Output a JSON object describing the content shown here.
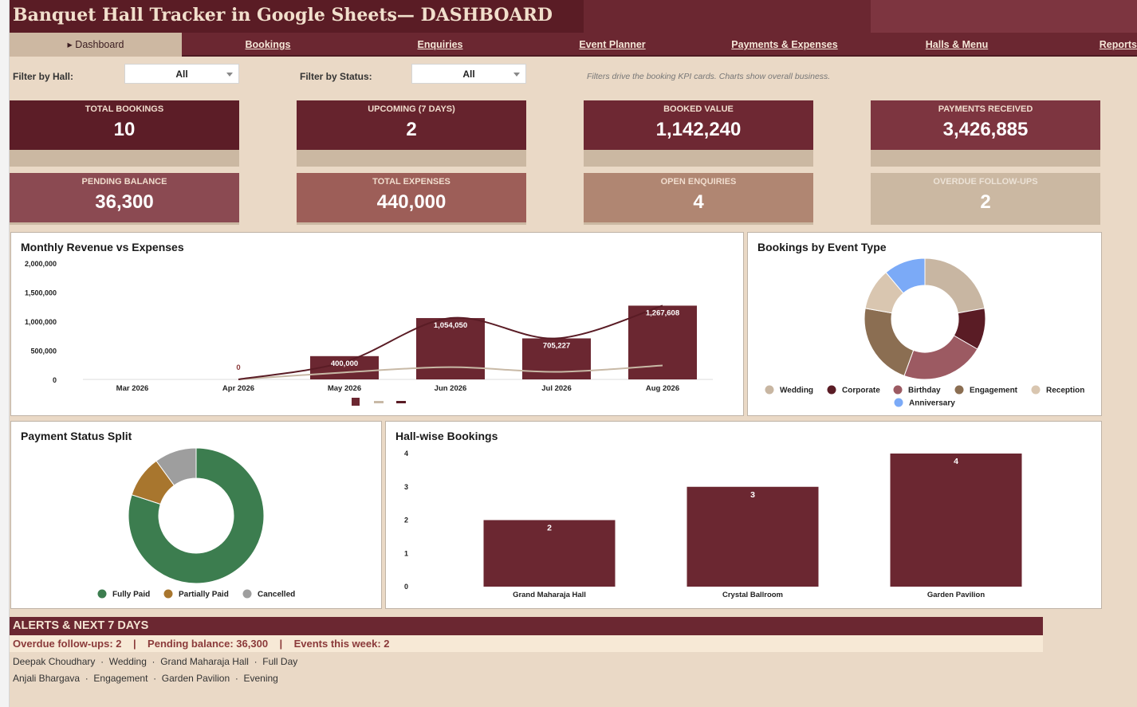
{
  "header": {
    "title": "Banquet Hall Tracker in Google Sheets— DASHBOARD"
  },
  "nav": {
    "tabs": [
      {
        "label": "▸ Dashboard",
        "active": true
      },
      {
        "label": "Bookings"
      },
      {
        "label": "Enquiries"
      },
      {
        "label": "Event Planner"
      },
      {
        "label": "Payments & Expenses"
      },
      {
        "label": "Halls & Menu"
      },
      {
        "label": "Reports"
      }
    ]
  },
  "filters": {
    "hall_label": "Filter by Hall:",
    "hall_value": "All",
    "status_label": "Filter by Status:",
    "status_value": "All",
    "note": "Filters drive the booking KPI cards. Charts show overall business."
  },
  "kpis": [
    {
      "label": "TOTAL BOOKINGS",
      "value": "10",
      "color": "#5c1d27"
    },
    {
      "label": "UPCOMING (7 DAYS)",
      "value": "2",
      "color": "#66232d"
    },
    {
      "label": "BOOKED VALUE",
      "value": "1,142,240",
      "color": "#6e2833"
    },
    {
      "label": "PAYMENTS RECEIVED",
      "value": "3,426,885",
      "color": "#7d3540"
    },
    {
      "label": "PENDING BALANCE",
      "value": "36,300",
      "color": "#8b4a52"
    },
    {
      "label": "TOTAL EXPENSES",
      "value": "440,000",
      "color": "#9d5e58"
    },
    {
      "label": "OPEN ENQUIRIES",
      "value": "4",
      "color": "#b08672"
    },
    {
      "label": "OVERDUE FOLLOW-UPS",
      "value": "2",
      "color": "#cbb8a2"
    }
  ],
  "chart_data": [
    {
      "type": "bar",
      "title": "Monthly Revenue vs Expenses",
      "categories": [
        "Mar 2026",
        "Apr 2026",
        "May 2026",
        "Jun 2026",
        "Jul 2026",
        "Aug 2026"
      ],
      "series": [
        {
          "values": [
            null,
            0,
            400000,
            1054050,
            705227,
            1267608
          ],
          "color": "#6b2731",
          "kind": "bar"
        },
        {
          "values": [
            null,
            0,
            120000,
            210000,
            130000,
            240000
          ],
          "color": "#c8b9a6",
          "kind": "line"
        },
        {
          "values": [
            null,
            0,
            300000,
            1054050,
            705227,
            1267608
          ],
          "color": "#5a1c25",
          "kind": "line"
        }
      ],
      "data_labels": [
        "",
        "0",
        "400,000",
        "1,054,050",
        "705,227",
        "1,267,608"
      ],
      "yticks": [
        "2,000,000",
        "1,500,000",
        "1,000,000",
        "500,000",
        "0"
      ],
      "ylim": [
        0,
        2000000
      ]
    },
    {
      "type": "pie",
      "title": "Bookings by Event Type",
      "labels": [
        "Wedding",
        "Corporate",
        "Birthday",
        "Engagement",
        "Reception",
        "Anniversary"
      ],
      "values": [
        2,
        1,
        2,
        2,
        1,
        1
      ],
      "colors": [
        "#c8b6a2",
        "#5a1c25",
        "#9c5a62",
        "#8b6e52",
        "#d9c6b0",
        "#7baaf7"
      ]
    },
    {
      "type": "pie",
      "title": "Payment Status Split",
      "labels": [
        "Fully Paid",
        "Partially Paid",
        "Cancelled"
      ],
      "values": [
        8,
        1,
        1
      ],
      "colors": [
        "#3c7d4f",
        "#a8762e",
        "#9e9e9e"
      ]
    },
    {
      "type": "bar",
      "title": "Hall-wise Bookings",
      "categories": [
        "Grand Maharaja Hall",
        "Crystal Ballroom",
        "Garden Pavilion"
      ],
      "values": [
        2,
        3,
        4
      ],
      "yticks": [
        "4",
        "3",
        "2",
        "1",
        "0"
      ],
      "ylim": [
        0,
        4
      ],
      "color": "#6b2731"
    }
  ],
  "alerts": {
    "title": "ALERTS & NEXT 7 DAYS",
    "summary": "Overdue follow-ups: 2    |    Pending balance: 36,300    |    Events this week: 2",
    "items": [
      "Deepak Choudhary  ·  Wedding  ·  Grand Maharaja Hall  ·  Full Day",
      "Anjali Bhargava  ·  Engagement  ·  Garden Pavilion  ·  Evening"
    ]
  }
}
